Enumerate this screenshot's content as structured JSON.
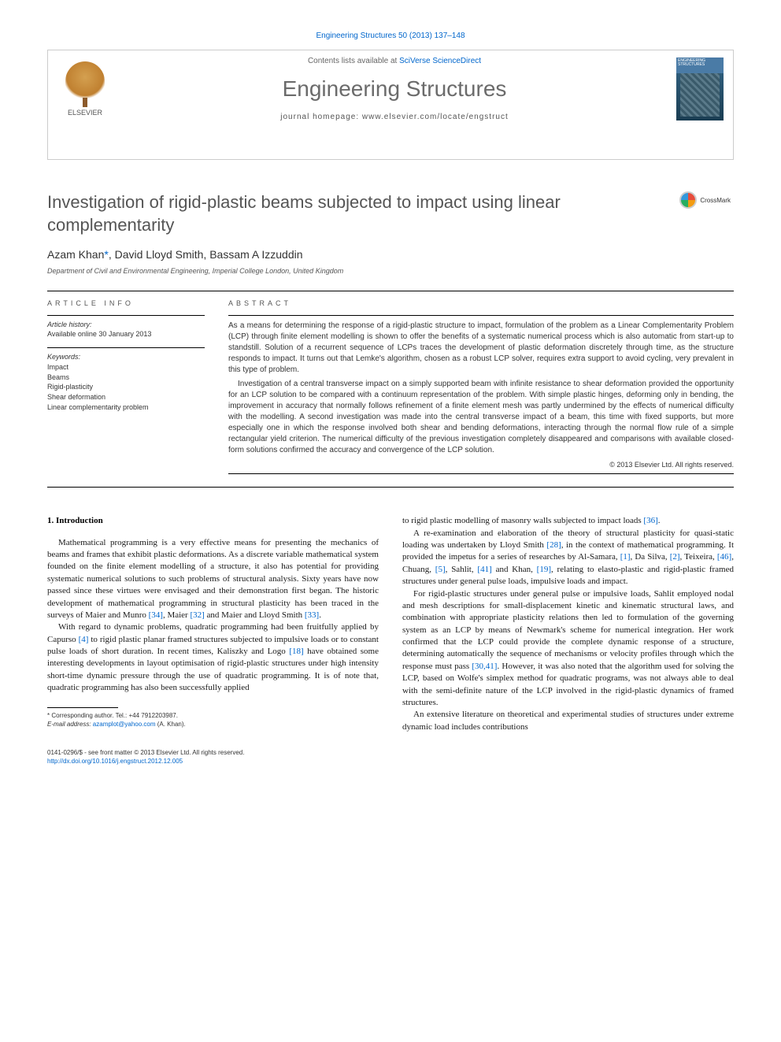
{
  "citation": "Engineering Structures 50 (2013) 137–148",
  "header": {
    "contents_prefix": "Contents lists available at ",
    "contents_link": "SciVerse ScienceDirect",
    "journal": "Engineering Structures",
    "homepage_prefix": "journal homepage: ",
    "homepage": "www.elsevier.com/locate/engstruct",
    "publisher_label": "ELSEVIER",
    "cover_label": "ENGINEERING STRUCTURES"
  },
  "title": "Investigation of rigid-plastic beams subjected to impact using linear complementarity",
  "crossmark": "CrossMark",
  "authors_html": "Azam Khan *, David Lloyd Smith, Bassam A Izzuddin",
  "authors": {
    "a1": "Azam Khan",
    "corr": "*",
    "a2": ", David Lloyd Smith, Bassam A Izzuddin"
  },
  "affiliation": "Department of Civil and Environmental Engineering, Imperial College London, United Kingdom",
  "info": {
    "heading": "ARTICLE INFO",
    "history_label": "Article history:",
    "history_value": "Available online 30 January 2013",
    "keywords_label": "Keywords:",
    "keywords": [
      "Impact",
      "Beams",
      "Rigid-plasticity",
      "Shear deformation",
      "Linear complementarity problem"
    ]
  },
  "abstract": {
    "heading": "ABSTRACT",
    "p1": "As a means for determining the response of a rigid-plastic structure to impact, formulation of the problem as a Linear Complementarity Problem (LCP) through finite element modelling is shown to offer the benefits of a systematic numerical process which is also automatic from start-up to standstill. Solution of a recurrent sequence of LCPs traces the development of plastic deformation discretely through time, as the structure responds to impact. It turns out that Lemke's algorithm, chosen as a robust LCP solver, requires extra support to avoid cycling, very prevalent in this type of problem.",
    "p2": "Investigation of a central transverse impact on a simply supported beam with infinite resistance to shear deformation provided the opportunity for an LCP solution to be compared with a continuum representation of the problem. With simple plastic hinges, deforming only in bending, the improvement in accuracy that normally follows refinement of a finite element mesh was partly undermined by the effects of numerical difficulty with the modelling. A second investigation was made into the central transverse impact of a beam, this time with fixed supports, but more especially one in which the response involved both shear and bending deformations, interacting through the normal flow rule of a simple rectangular yield criterion. The numerical difficulty of the previous investigation completely disappeared and comparisons with available closed-form solutions confirmed the accuracy and convergence of the LCP solution.",
    "copyright": "© 2013 Elsevier Ltd. All rights reserved."
  },
  "section1": {
    "heading": "1. Introduction",
    "p1a": "Mathematical programming is a very effective means for presenting the mechanics of beams and frames that exhibit plastic deformations. As a discrete variable mathematical system founded on the finite element modelling of a structure, it also has potential for providing systematic numerical solutions to such problems of structural analysis. Sixty years have now passed since these virtues were envisaged and their demonstration first began. The historic development of mathematical programming in structural plasticity has been traced in the surveys of Maier and Munro ",
    "r34": "[34]",
    "p1b": ", Maier ",
    "r32": "[32]",
    "p1c": " and Maier and Lloyd Smith ",
    "r33": "[33]",
    "p1d": ".",
    "p2a": "With regard to dynamic problems, quadratic programming had been fruitfully applied by Capurso ",
    "r4": "[4]",
    "p2b": " to rigid plastic planar framed structures subjected to impulsive loads or to constant pulse loads of short duration. In recent times, Kaliszky and Logo ",
    "r18": "[18]",
    "p2c": " have obtained some interesting developments in layout optimisation of rigid-plastic structures under high intensity short-time dynamic pressure through the use of quadratic programming. It is of note that, quadratic programming has also been successfully applied",
    "p3a": "to rigid plastic modelling of masonry walls subjected to impact loads ",
    "r36": "[36]",
    "p3b": ".",
    "p4a": "A re-examination and elaboration of the theory of structural plasticity for quasi-static loading was undertaken by Lloyd Smith ",
    "r28": "[28]",
    "p4b": ", in the context of mathematical programming. It provided the impetus for a series of researches by Al-Samara, ",
    "r1": "[1]",
    "p4c": ", Da Silva, ",
    "r2": "[2]",
    "p4d": ", Teixeira, ",
    "r46": "[46]",
    "p4e": ", Chuang, ",
    "r5": "[5]",
    "p4f": ", Sahlit, ",
    "r41": "[41]",
    "p4g": " and Khan, ",
    "r19": "[19]",
    "p4h": ", relating to elasto-plastic and rigid-plastic framed structures under general pulse loads, impulsive loads and impact.",
    "p5": "For rigid-plastic structures under general pulse or impulsive loads, Sahlit employed nodal and mesh descriptions for small-displacement kinetic and kinematic structural laws, and combination with appropriate plasticity relations then led to formulation of the governing system as an LCP by means of Newmark's scheme for numerical integration. Her work confirmed that the LCP could provide the complete dynamic response of a structure, determining automatically the sequence of mechanisms or velocity profiles through which the response must pass ",
    "r3041": "[30,41]",
    "p5b": ". However, it was also noted that the algorithm used for solving the LCP, based on Wolfe's simplex method for quadratic programs, was not always able to deal with the semi-definite nature of the LCP involved in the rigid-plastic dynamics of framed structures.",
    "p6": "An extensive literature on theoretical and experimental studies of structures under extreme dynamic load includes contributions"
  },
  "footnote": {
    "corr_label": "* Corresponding author. Tel.: +44 7912203987.",
    "email_label": "E-mail address: ",
    "email": "azamplot@yahoo.com",
    "email_suffix": " (A. Khan)."
  },
  "footer": {
    "issn": "0141-0296/$ - see front matter © 2013 Elsevier Ltd. All rights reserved.",
    "doi": "http://dx.doi.org/10.1016/j.engstruct.2012.12.005"
  },
  "colors": {
    "link": "#0066cc",
    "heading_gray": "#555555",
    "text": "#1a1a1a"
  }
}
